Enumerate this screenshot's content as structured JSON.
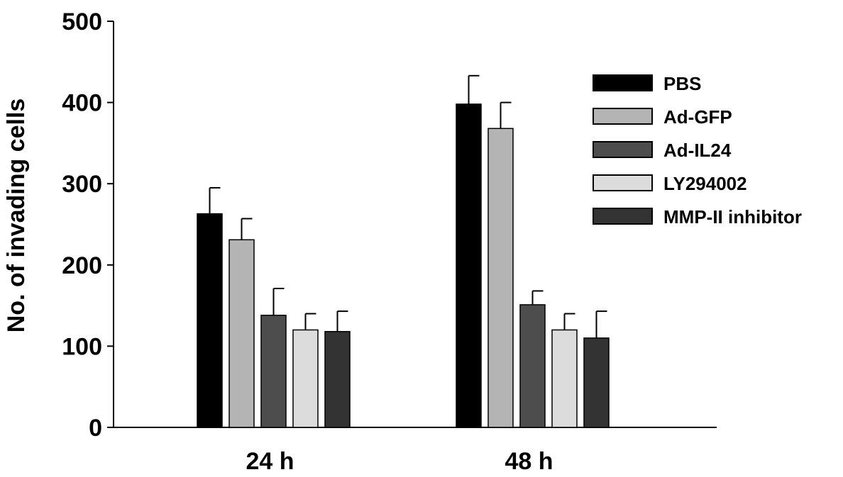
{
  "chart_data": {
    "type": "bar",
    "title": "",
    "xlabel": "",
    "ylabel": "No. of  invading cells",
    "ylim": [
      0,
      500
    ],
    "yticks": [
      0,
      100,
      200,
      300,
      400,
      500
    ],
    "categories": [
      "24 h",
      "48 h"
    ],
    "grid": false,
    "legend_position": "right",
    "error_bars": "upper",
    "series": [
      {
        "name": "PBS",
        "color": "#000000",
        "values": [
          263,
          398
        ],
        "errors": [
          32,
          35
        ]
      },
      {
        "name": "Ad-GFP",
        "color": "#b4b4b4",
        "values": [
          231,
          368
        ],
        "errors": [
          26,
          32
        ]
      },
      {
        "name": "Ad-IL24",
        "color": "#4d4d4d",
        "values": [
          138,
          151
        ],
        "errors": [
          33,
          17
        ]
      },
      {
        "name": "LY294002",
        "color": "#dcdcdc",
        "values": [
          120,
          120
        ],
        "errors": [
          20,
          20
        ]
      },
      {
        "name": "MMP-II inhibitor",
        "color": "#333333",
        "values": [
          118,
          110
        ],
        "errors": [
          25,
          33
        ]
      }
    ]
  }
}
